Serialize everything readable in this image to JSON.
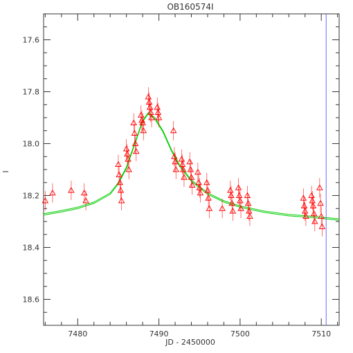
{
  "colors": {
    "axes": "#333333",
    "points": "#ff0000",
    "model": "#00cc00",
    "vline": "#6666ff",
    "background": "#ffffff"
  },
  "chart_data": {
    "type": "scatter",
    "title": "OB160574I",
    "xlabel": "JD - 2450000",
    "ylabel": "I",
    "xlim": [
      7475.8,
      7512.2
    ],
    "ylim": [
      18.7,
      17.5
    ],
    "y_inverted": true,
    "xticks": [
      7480,
      7490,
      7500,
      7510
    ],
    "xtick_labels": [
      "7480",
      "7490",
      "7500",
      "7510"
    ],
    "yticks": [
      17.6,
      17.8,
      18.0,
      18.2,
      18.4,
      18.6
    ],
    "ytick_labels": [
      "17.6",
      "17.8",
      "18.0",
      "18.2",
      "18.4",
      "18.6"
    ],
    "grid": false,
    "marker": "open-triangle",
    "vertical_line_x": 7510.6,
    "model_curve": {
      "name": "",
      "x": [
        7475.8,
        7478,
        7480,
        7482,
        7484,
        7485,
        7486,
        7487,
        7488,
        7488.7,
        7489.5,
        7490.5,
        7491.5,
        7492.5,
        7494,
        7496,
        7498,
        7500,
        7503,
        7506,
        7509,
        7512.2
      ],
      "y": [
        18.27,
        18.258,
        18.245,
        18.225,
        18.19,
        18.15,
        18.09,
        18.0,
        17.91,
        17.88,
        17.9,
        17.95,
        18.02,
        18.08,
        18.14,
        18.19,
        18.22,
        18.24,
        18.26,
        18.273,
        18.28,
        18.29
      ]
    },
    "series": [
      {
        "x": [
          7476.0,
          7476.9,
          7479.2,
          7480.8,
          7481.0,
          7485.0,
          7485.1,
          7485.2,
          7485.3,
          7485.4,
          7486.0,
          7486.1,
          7486.2,
          7486.3,
          7486.9,
          7487.0,
          7487.1,
          7487.2,
          7487.8,
          7487.9,
          7488.0,
          7488.1,
          7488.7,
          7488.8,
          7488.9,
          7489.0,
          7489.1,
          7489.8,
          7489.9,
          7490.0,
          7491.8,
          7491.9,
          7492.0,
          7492.1,
          7492.8,
          7492.9,
          7493.0,
          7493.1,
          7493.8,
          7493.9,
          7494.0,
          7494.1,
          7494.8,
          7494.9,
          7495.0,
          7495.1,
          7495.9,
          7496.0,
          7496.1,
          7496.2,
          7497.8,
          7498.8,
          7498.9,
          7499.0,
          7499.1,
          7499.8,
          7499.9,
          7500.0,
          7500.1,
          7500.9,
          7501.0,
          7501.1,
          7501.2,
          7507.8,
          7507.9,
          7508.0,
          7508.1,
          7508.8,
          7508.9,
          7509.0,
          7509.1,
          7509.2,
          7509.8,
          7509.9,
          7510.0,
          7510.1
        ],
        "y": [
          18.22,
          18.19,
          18.18,
          18.19,
          18.22,
          18.08,
          18.12,
          18.15,
          18.18,
          18.22,
          18.02,
          18.04,
          18.06,
          18.1,
          17.92,
          17.96,
          18.0,
          18.03,
          17.89,
          17.91,
          17.92,
          17.95,
          17.82,
          17.84,
          17.86,
          17.88,
          17.9,
          17.86,
          17.88,
          17.9,
          17.95,
          18.05,
          18.07,
          18.1,
          18.06,
          18.08,
          18.1,
          18.13,
          18.07,
          18.1,
          18.13,
          18.16,
          18.11,
          18.15,
          18.17,
          18.19,
          18.15,
          18.18,
          18.21,
          18.25,
          18.25,
          18.18,
          18.2,
          18.23,
          18.26,
          18.17,
          18.2,
          18.22,
          18.25,
          18.2,
          18.23,
          18.26,
          18.28,
          18.21,
          18.24,
          18.26,
          18.28,
          18.2,
          18.22,
          18.24,
          18.27,
          18.3,
          18.17,
          18.23,
          18.28,
          18.32
        ]
      }
    ]
  }
}
